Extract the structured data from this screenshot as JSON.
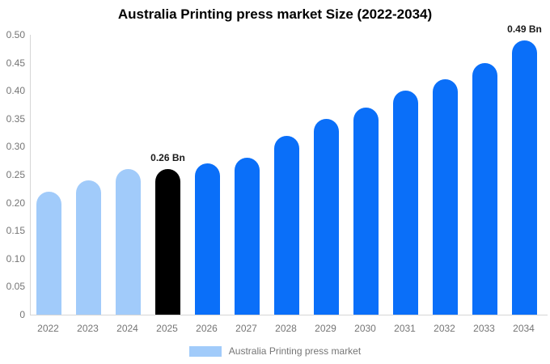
{
  "title": "Australia Printing press market Size (2022-2034)",
  "chart_data": {
    "type": "bar",
    "title": "Australia Printing press market Size (2022-2034)",
    "categories": [
      "2022",
      "2023",
      "2024",
      "2025",
      "2026",
      "2027",
      "2028",
      "2029",
      "2030",
      "2031",
      "2032",
      "2033",
      "2034"
    ],
    "series": [
      {
        "name": "Australia Printing press market",
        "values": [
          0.22,
          0.24,
          0.26,
          0.26,
          0.27,
          0.28,
          0.32,
          0.35,
          0.37,
          0.4,
          0.42,
          0.45,
          0.49
        ]
      }
    ],
    "unit": "Bn",
    "xlabel": "",
    "ylabel": "",
    "ylim": [
      0,
      0.5
    ],
    "yticks": [
      {
        "value": 0.5,
        "label": "0.50"
      },
      {
        "value": 0.45,
        "label": "0.45"
      },
      {
        "value": 0.4,
        "label": "0.40"
      },
      {
        "value": 0.35,
        "label": "0.35"
      },
      {
        "value": 0.3,
        "label": "0.30"
      },
      {
        "value": 0.25,
        "label": "0.25"
      },
      {
        "value": 0.2,
        "label": "0.20"
      },
      {
        "value": 0.15,
        "label": "0.15"
      },
      {
        "value": 0.1,
        "label": "0.10"
      },
      {
        "value": 0.05,
        "label": "0.05"
      },
      {
        "value": 0,
        "label": "0"
      }
    ],
    "grid": false,
    "legend_position": "bottom",
    "bar_colors": [
      "#a1cbfa",
      "#a1cbfa",
      "#a1cbfa",
      "#000000",
      "#0a6ff9",
      "#0a6ff9",
      "#0a6ff9",
      "#0a6ff9",
      "#0a6ff9",
      "#0a6ff9",
      "#0a6ff9",
      "#0a6ff9",
      "#0a6ff9"
    ],
    "annotations": [
      {
        "index": 3,
        "text": "0.26 Bn"
      },
      {
        "index": 12,
        "text": "0.49 Bn"
      }
    ]
  },
  "legend": {
    "label": "Australia Printing press market",
    "swatch_color": "#a1cbfa"
  },
  "colors": {
    "historical_bar": "#a1cbfa",
    "base_year_bar": "#000000",
    "forecast_bar": "#0a6ff9",
    "axis_line": "#d6d6d6",
    "tick_text": "#757575",
    "annotation_text": "#1a1a1a",
    "title_text": "#000000",
    "background": "#ffffff"
  }
}
